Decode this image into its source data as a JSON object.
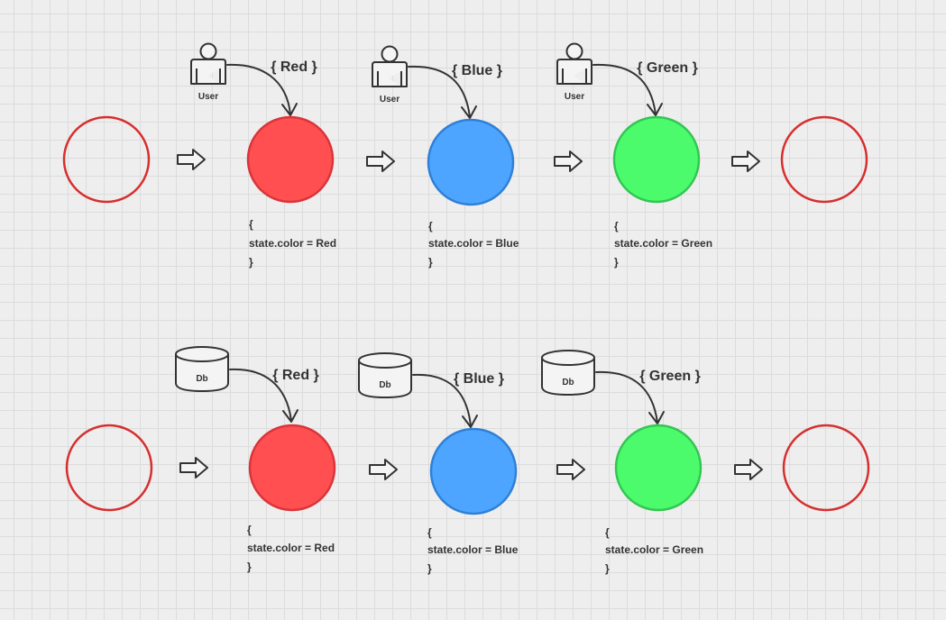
{
  "colors": {
    "empty_outline": "#d62f2f",
    "red": "#ff4f50",
    "red_stroke": "#d9353a",
    "blue": "#4da5ff",
    "blue_stroke": "#2f80d6",
    "green": "#4cfb6c",
    "green_stroke": "#33c653"
  },
  "rows": [
    {
      "actor_type": "user-icon",
      "states": [
        {
          "actor_label": "User",
          "event": "{ Red }",
          "color_key": "red",
          "code_open": "{",
          "code_line": "state.color = Red",
          "code_close": "}"
        },
        {
          "actor_label": "User",
          "event": "{ Blue }",
          "color_key": "blue",
          "code_open": "{",
          "code_line": "state.color = Blue",
          "code_close": "}"
        },
        {
          "actor_label": "User",
          "event": "{ Green }",
          "color_key": "green",
          "code_open": "{",
          "code_line": "state.color = Green",
          "code_close": "}"
        }
      ]
    },
    {
      "actor_type": "database-icon",
      "states": [
        {
          "actor_label": "Db",
          "event": "{ Red }",
          "color_key": "red",
          "code_open": "{",
          "code_line": "state.color = Red",
          "code_close": "}"
        },
        {
          "actor_label": "Db",
          "event": "{ Blue }",
          "color_key": "blue",
          "code_open": "{",
          "code_line": "state.color = Blue",
          "code_close": "}"
        },
        {
          "actor_label": "Db",
          "event": "{ Green }",
          "color_key": "green",
          "code_open": "{",
          "code_line": "state.color = Green",
          "code_close": "}"
        }
      ]
    }
  ]
}
